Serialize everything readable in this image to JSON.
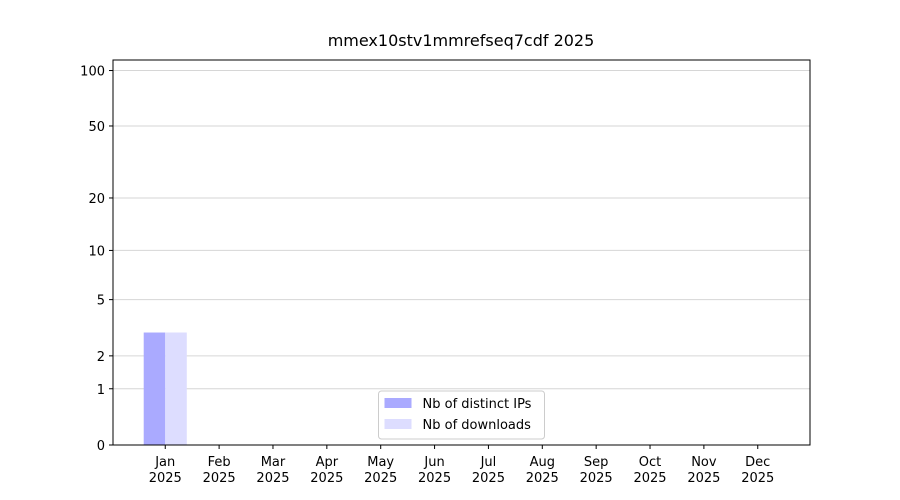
{
  "chart_data": {
    "type": "bar",
    "title": "mmex10stv1mmrefseq7cdf 2025",
    "categories": [
      "Jan 2025",
      "Feb 2025",
      "Mar 2025",
      "Apr 2025",
      "May 2025",
      "Jun 2025",
      "Jul 2025",
      "Aug 2025",
      "Sep 2025",
      "Oct 2025",
      "Nov 2025",
      "Dec 2025"
    ],
    "series": [
      {
        "name": "Nb of distinct IPs",
        "color": "#aaaaff",
        "values": [
          3,
          0,
          0,
          0,
          0,
          0,
          0,
          0,
          0,
          0,
          0,
          0
        ]
      },
      {
        "name": "Nb of downloads",
        "color": "#ddddff",
        "values": [
          3,
          0,
          0,
          0,
          0,
          0,
          0,
          0,
          0,
          0,
          0,
          0
        ]
      }
    ],
    "yscale": "log1p",
    "ylim": [
      0,
      114
    ],
    "yticks": [
      0,
      1,
      2,
      5,
      10,
      20,
      50,
      100
    ],
    "grid": true,
    "legend": "lower center"
  }
}
